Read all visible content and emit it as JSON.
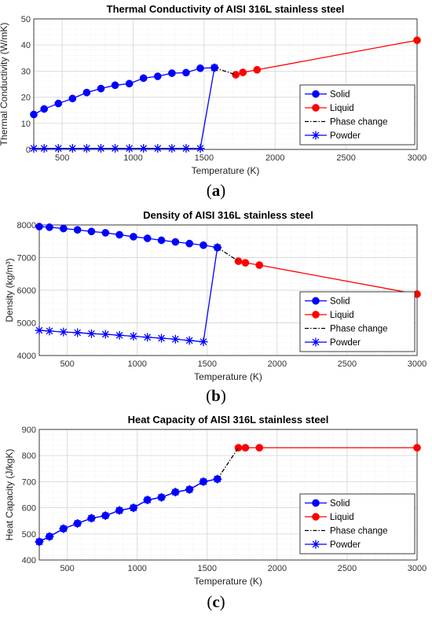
{
  "chart_data": [
    {
      "type": "line",
      "title": "Thermal Conductivity of AISI 316L stainless steel",
      "xlabel": "Temperature (K)",
      "ylabel": "Thermal Conductivity (W/mK)",
      "xlim": [
        300,
        3000
      ],
      "ylim": [
        0,
        50
      ],
      "xticks": [
        500,
        1000,
        1500,
        2000,
        2500,
        3000
      ],
      "yticks": [
        0,
        10,
        20,
        30,
        40,
        50
      ],
      "grid": true,
      "legend_position": "bottom-right",
      "caption": "a",
      "series": [
        {
          "name": "Solid",
          "marker": "circle",
          "color": "#0000ff",
          "x": [
            300,
            373,
            473,
            573,
            673,
            773,
            873,
            973,
            1073,
            1173,
            1273,
            1373,
            1473,
            1573
          ],
          "y": [
            13.4,
            15.5,
            17.6,
            19.5,
            21.8,
            23.3,
            24.6,
            25.2,
            27.3,
            28.0,
            29.2,
            29.4,
            31.1,
            31.3
          ]
        },
        {
          "name": "Liquid",
          "marker": "circle",
          "color": "#ff0000",
          "x": [
            1723,
            1773,
            1873,
            3000
          ],
          "y": [
            28.6,
            29.5,
            30.5,
            41.8
          ]
        },
        {
          "name": "Phase change",
          "marker": "none",
          "color": "#000000",
          "style": "dash-dot",
          "x": [
            1573,
            1723
          ],
          "y": [
            31.3,
            28.6
          ]
        },
        {
          "name": "Powder",
          "marker": "star",
          "color": "#0000ff",
          "x": [
            300,
            373,
            473,
            573,
            673,
            773,
            873,
            973,
            1073,
            1173,
            1273,
            1373,
            1473,
            1573
          ],
          "y": [
            0.4,
            0.4,
            0.4,
            0.4,
            0.4,
            0.4,
            0.4,
            0.4,
            0.4,
            0.4,
            0.4,
            0.4,
            0.4,
            31.3
          ]
        }
      ]
    },
    {
      "type": "line",
      "title": "Density of AISI 316L stainless steel",
      "xlabel": "Temperature (K)",
      "ylabel": "Density (kg/m³)",
      "xlim": [
        300,
        3000
      ],
      "ylim": [
        4000,
        8000
      ],
      "xticks": [
        500,
        1000,
        1500,
        2000,
        2500,
        3000
      ],
      "yticks": [
        4000,
        5000,
        6000,
        7000,
        8000
      ],
      "grid": true,
      "legend_position": "bottom-right",
      "caption": "b",
      "series": [
        {
          "name": "Solid",
          "marker": "circle",
          "color": "#0000ff",
          "x": [
            300,
            373,
            473,
            573,
            673,
            773,
            873,
            973,
            1073,
            1173,
            1273,
            1373,
            1473,
            1573
          ],
          "y": [
            7950,
            7930,
            7890,
            7850,
            7800,
            7760,
            7700,
            7640,
            7590,
            7530,
            7480,
            7430,
            7380,
            7310
          ]
        },
        {
          "name": "Liquid",
          "marker": "circle",
          "color": "#ff0000",
          "x": [
            1723,
            1773,
            1873,
            3000
          ],
          "y": [
            6890,
            6840,
            6770,
            5880
          ]
        },
        {
          "name": "Phase change",
          "marker": "none",
          "color": "#000000",
          "style": "dash-dot",
          "x": [
            1573,
            1723
          ],
          "y": [
            7310,
            6890
          ]
        },
        {
          "name": "Powder",
          "marker": "star",
          "color": "#0000ff",
          "x": [
            300,
            373,
            473,
            573,
            673,
            773,
            873,
            973,
            1073,
            1173,
            1273,
            1373,
            1473,
            1573
          ],
          "y": [
            4770,
            4750,
            4720,
            4700,
            4670,
            4650,
            4620,
            4590,
            4560,
            4530,
            4500,
            4460,
            4420,
            7310
          ]
        }
      ]
    },
    {
      "type": "line",
      "title": "Heat Capacity of AISI 316L stainless steel",
      "xlabel": "Temperature (K)",
      "ylabel": "Heat Capacity (J/kgK)",
      "xlim": [
        300,
        3000
      ],
      "ylim": [
        400,
        900
      ],
      "xticks": [
        500,
        1000,
        1500,
        2000,
        2500,
        3000
      ],
      "yticks": [
        400,
        500,
        600,
        700,
        800,
        900
      ],
      "grid": true,
      "legend_position": "bottom-right",
      "caption": "c",
      "series": [
        {
          "name": "Solid",
          "marker": "circle",
          "color": "#0000ff",
          "x": [
            300,
            373,
            473,
            573,
            673,
            773,
            873,
            973,
            1073,
            1173,
            1273,
            1373,
            1473,
            1573
          ],
          "y": [
            470,
            490,
            520,
            540,
            560,
            570,
            590,
            600,
            630,
            640,
            660,
            670,
            700,
            710
          ]
        },
        {
          "name": "Liquid",
          "marker": "circle",
          "color": "#ff0000",
          "x": [
            1723,
            1773,
            1873,
            3000
          ],
          "y": [
            830,
            830,
            830,
            830
          ]
        },
        {
          "name": "Phase change",
          "marker": "none",
          "color": "#000000",
          "style": "dash-dot",
          "x": [
            1573,
            1723
          ],
          "y": [
            710,
            830
          ]
        },
        {
          "name": "Powder",
          "marker": "star",
          "color": "#0000ff",
          "x": [
            300,
            373,
            473,
            573,
            673,
            773,
            873,
            973,
            1073,
            1173,
            1273,
            1373,
            1473,
            1573
          ],
          "y": [
            470,
            490,
            520,
            540,
            560,
            570,
            590,
            600,
            630,
            640,
            660,
            670,
            700,
            710
          ]
        }
      ]
    }
  ],
  "colors": {
    "solid": "#0000ff",
    "liquid": "#ff0000",
    "phase": "#000000",
    "grid": "#d9d9d9",
    "minor_grid": "#eeeeee"
  }
}
